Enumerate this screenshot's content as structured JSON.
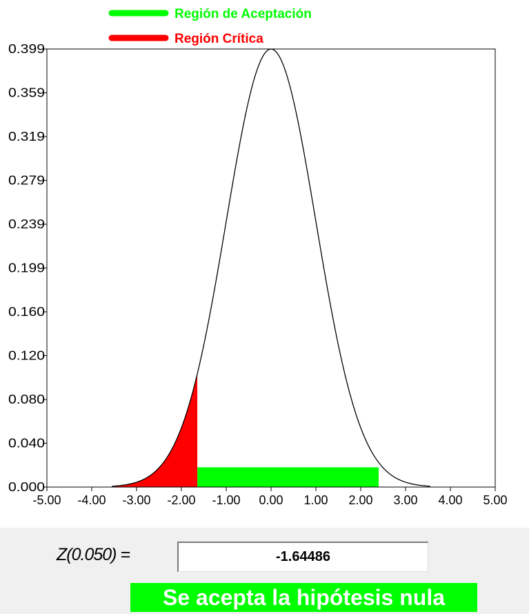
{
  "chart_data": {
    "type": "area",
    "distribution": "standard normal",
    "xlim": [
      -5,
      5
    ],
    "ylim": [
      0,
      0.399
    ],
    "x_ticks": [
      "-5.00",
      "-4.00",
      "-3.00",
      "-2.00",
      "-1.00",
      "0.00",
      "1.00",
      "2.00",
      "3.00",
      "4.00",
      "5.00"
    ],
    "y_ticks": [
      "0.000",
      "0.040",
      "0.080",
      "0.120",
      "0.160",
      "0.199",
      "0.239",
      "0.279",
      "0.319",
      "0.359",
      "0.399"
    ],
    "grid": false,
    "legend_position": "top",
    "legend": [
      {
        "label": "Región de Aceptación",
        "color": "#00ff00"
      },
      {
        "label": "Región Crítica",
        "color": "#ff0000"
      }
    ],
    "critical_region": {
      "from": -3.5,
      "to": -1.64486,
      "color": "#ff0000"
    },
    "acceptance_region": {
      "from": -1.64486,
      "to": 2.4,
      "height": 0.018,
      "color": "#00ff00"
    }
  },
  "result": {
    "z_label": "Z(0.050) =",
    "z_value": "-1.64486",
    "message": "Se acepta la hipótesis nula",
    "message_bg": "#00ff00"
  }
}
